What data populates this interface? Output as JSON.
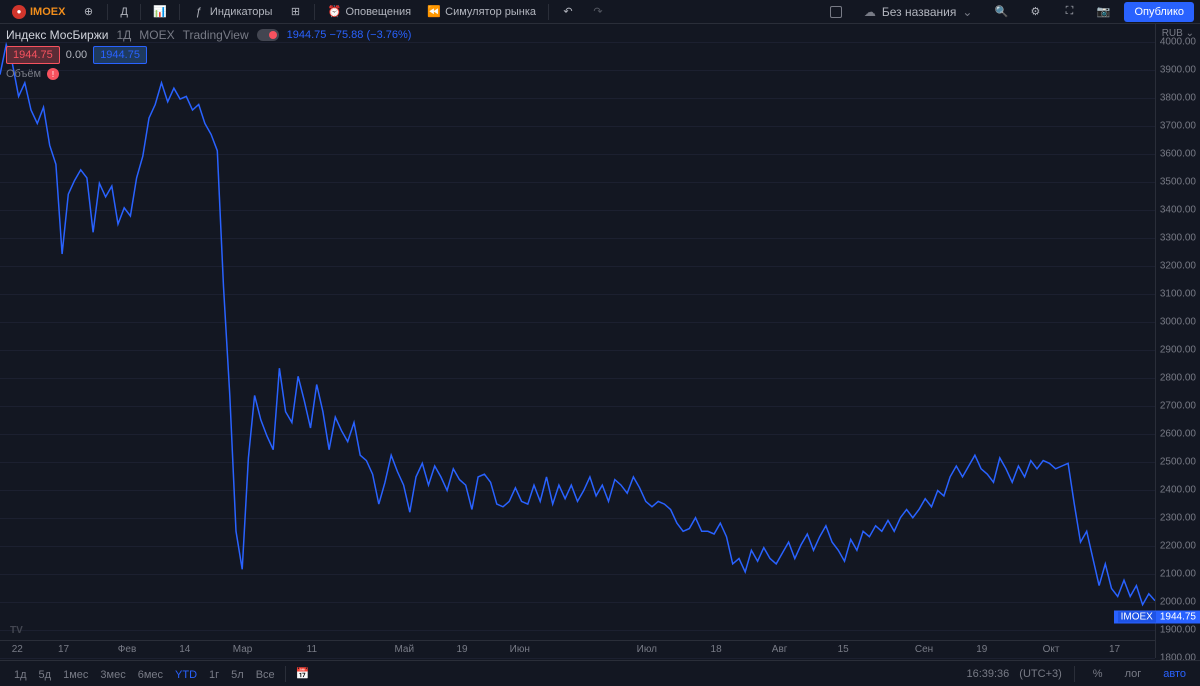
{
  "toolbar": {
    "symbol": "IMOEX",
    "interval": "Д",
    "indicators": "Индикаторы",
    "alerts": "Оповещения",
    "simulator": "Симулятор рынка",
    "untitled": "Без названия",
    "publish": "Опублико"
  },
  "header": {
    "title": "Индекс МосБиржи",
    "interval": "1Д",
    "exchange": "MOEX",
    "provider": "TradingView",
    "quote_price": "1944.75",
    "quote_change": "−75.88",
    "quote_pct": "(−3.76%)",
    "price_o": "1944.75",
    "price_mid": "0.00",
    "price_c": "1944.75",
    "volume_label": "Объём"
  },
  "yaxis": {
    "currency_label": "RUB",
    "ymin": 1800,
    "ymax": 4000,
    "step": 100,
    "ticks": [
      4000,
      3900,
      3800,
      3700,
      3600,
      3500,
      3400,
      3300,
      3200,
      3100,
      3000,
      2900,
      2800,
      2700,
      2600,
      2500,
      2400,
      2300,
      2200,
      2100,
      2000,
      1900,
      1800
    ],
    "price_tag_symbol": "IMOEX",
    "price_tag_value": "1944.75",
    "price_tag_y": 1944.75
  },
  "xaxis": {
    "labels": [
      {
        "x_pct": 1.5,
        "text": "22"
      },
      {
        "x_pct": 5.5,
        "text": "17"
      },
      {
        "x_pct": 11,
        "text": "Фев"
      },
      {
        "x_pct": 16,
        "text": "14"
      },
      {
        "x_pct": 21,
        "text": "Мар"
      },
      {
        "x_pct": 27,
        "text": "11"
      },
      {
        "x_pct": 35,
        "text": "Май"
      },
      {
        "x_pct": 40,
        "text": "19"
      },
      {
        "x_pct": 45,
        "text": "Июн"
      },
      {
        "x_pct": 56,
        "text": "Июл"
      },
      {
        "x_pct": 62,
        "text": "18"
      },
      {
        "x_pct": 67.5,
        "text": "Авг"
      },
      {
        "x_pct": 73,
        "text": "15"
      },
      {
        "x_pct": 80,
        "text": "Сен"
      },
      {
        "x_pct": 85,
        "text": "19"
      },
      {
        "x_pct": 91,
        "text": "Окт"
      },
      {
        "x_pct": 96.5,
        "text": "17"
      }
    ]
  },
  "chart": {
    "line_color": "#2962ff",
    "line_width": 1.5,
    "background": "#131722",
    "grid_color": "#1c2030",
    "points": [
      [
        0,
        3880
      ],
      [
        0.5,
        3990
      ],
      [
        1,
        3920
      ],
      [
        1.5,
        3800
      ],
      [
        2,
        3850
      ],
      [
        2.5,
        3750
      ],
      [
        3,
        3700
      ],
      [
        3.5,
        3760
      ],
      [
        4,
        3620
      ],
      [
        4.5,
        3550
      ],
      [
        5,
        3220
      ],
      [
        5.5,
        3440
      ],
      [
        6,
        3490
      ],
      [
        6.5,
        3530
      ],
      [
        7,
        3500
      ],
      [
        7.5,
        3300
      ],
      [
        8,
        3480
      ],
      [
        8.5,
        3430
      ],
      [
        9,
        3470
      ],
      [
        9.5,
        3330
      ],
      [
        10,
        3390
      ],
      [
        10.5,
        3360
      ],
      [
        11,
        3500
      ],
      [
        11.5,
        3580
      ],
      [
        12,
        3720
      ],
      [
        12.5,
        3770
      ],
      [
        13,
        3850
      ],
      [
        13.5,
        3780
      ],
      [
        14,
        3830
      ],
      [
        14.5,
        3790
      ],
      [
        15,
        3800
      ],
      [
        15.5,
        3750
      ],
      [
        16,
        3770
      ],
      [
        16.5,
        3700
      ],
      [
        17,
        3660
      ],
      [
        17.5,
        3600
      ],
      [
        18,
        3100
      ],
      [
        18.5,
        2700
      ],
      [
        19,
        2200
      ],
      [
        19.5,
        2060
      ],
      [
        20,
        2470
      ],
      [
        20.5,
        2700
      ],
      [
        21,
        2610
      ],
      [
        21.5,
        2550
      ],
      [
        22,
        2500
      ],
      [
        22.5,
        2800
      ],
      [
        23,
        2640
      ],
      [
        23.5,
        2600
      ],
      [
        24,
        2770
      ],
      [
        24.5,
        2680
      ],
      [
        25,
        2580
      ],
      [
        25.5,
        2740
      ],
      [
        26,
        2640
      ],
      [
        26.5,
        2500
      ],
      [
        27,
        2620
      ],
      [
        27.5,
        2570
      ],
      [
        28,
        2530
      ],
      [
        28.5,
        2600
      ],
      [
        29,
        2480
      ],
      [
        29.5,
        2460
      ],
      [
        30,
        2410
      ],
      [
        30.5,
        2300
      ],
      [
        31,
        2380
      ],
      [
        31.5,
        2480
      ],
      [
        32,
        2420
      ],
      [
        32.5,
        2370
      ],
      [
        33,
        2270
      ],
      [
        33.5,
        2400
      ],
      [
        34,
        2450
      ],
      [
        34.5,
        2370
      ],
      [
        35,
        2440
      ],
      [
        35.5,
        2400
      ],
      [
        36,
        2350
      ],
      [
        36.5,
        2430
      ],
      [
        37,
        2390
      ],
      [
        37.5,
        2370
      ],
      [
        38,
        2280
      ],
      [
        38.5,
        2400
      ],
      [
        39,
        2410
      ],
      [
        39.5,
        2380
      ],
      [
        40,
        2300
      ],
      [
        40.5,
        2290
      ],
      [
        41,
        2310
      ],
      [
        41.5,
        2360
      ],
      [
        42,
        2310
      ],
      [
        42.5,
        2300
      ],
      [
        43,
        2370
      ],
      [
        43.5,
        2310
      ],
      [
        44,
        2400
      ],
      [
        44.5,
        2300
      ],
      [
        45,
        2370
      ],
      [
        45.5,
        2320
      ],
      [
        46,
        2370
      ],
      [
        46.5,
        2310
      ],
      [
        47,
        2350
      ],
      [
        47.5,
        2400
      ],
      [
        48,
        2330
      ],
      [
        48.5,
        2370
      ],
      [
        49,
        2310
      ],
      [
        49.5,
        2390
      ],
      [
        50,
        2370
      ],
      [
        50.5,
        2340
      ],
      [
        51,
        2400
      ],
      [
        51.5,
        2360
      ],
      [
        52,
        2310
      ],
      [
        52.5,
        2290
      ],
      [
        53,
        2310
      ],
      [
        53.5,
        2300
      ],
      [
        54,
        2280
      ],
      [
        54.5,
        2230
      ],
      [
        55,
        2200
      ],
      [
        55.5,
        2210
      ],
      [
        56,
        2250
      ],
      [
        56.5,
        2200
      ],
      [
        57,
        2200
      ],
      [
        57.5,
        2190
      ],
      [
        58,
        2230
      ],
      [
        58.5,
        2180
      ],
      [
        59,
        2080
      ],
      [
        59.5,
        2100
      ],
      [
        60,
        2050
      ],
      [
        60.5,
        2130
      ],
      [
        61,
        2090
      ],
      [
        61.5,
        2140
      ],
      [
        62,
        2100
      ],
      [
        62.5,
        2080
      ],
      [
        63,
        2120
      ],
      [
        63.5,
        2160
      ],
      [
        64,
        2100
      ],
      [
        64.5,
        2150
      ],
      [
        65,
        2190
      ],
      [
        65.5,
        2130
      ],
      [
        66,
        2180
      ],
      [
        66.5,
        2220
      ],
      [
        67,
        2160
      ],
      [
        67.5,
        2130
      ],
      [
        68,
        2090
      ],
      [
        68.5,
        2170
      ],
      [
        69,
        2130
      ],
      [
        69.5,
        2200
      ],
      [
        70,
        2180
      ],
      [
        70.5,
        2220
      ],
      [
        71,
        2200
      ],
      [
        71.5,
        2240
      ],
      [
        72,
        2200
      ],
      [
        72.5,
        2250
      ],
      [
        73,
        2280
      ],
      [
        73.5,
        2250
      ],
      [
        74,
        2280
      ],
      [
        74.5,
        2320
      ],
      [
        75,
        2290
      ],
      [
        75.5,
        2350
      ],
      [
        76,
        2330
      ],
      [
        76.5,
        2400
      ],
      [
        77,
        2440
      ],
      [
        77.5,
        2400
      ],
      [
        78,
        2440
      ],
      [
        78.5,
        2480
      ],
      [
        79,
        2430
      ],
      [
        79.5,
        2410
      ],
      [
        80,
        2380
      ],
      [
        80.5,
        2470
      ],
      [
        81,
        2430
      ],
      [
        81.5,
        2380
      ],
      [
        82,
        2440
      ],
      [
        82.5,
        2400
      ],
      [
        83,
        2460
      ],
      [
        83.5,
        2430
      ],
      [
        84,
        2460
      ],
      [
        84.5,
        2450
      ],
      [
        85,
        2430
      ],
      [
        85.5,
        2440
      ],
      [
        86,
        2450
      ],
      [
        86.5,
        2300
      ],
      [
        87,
        2160
      ],
      [
        87.5,
        2200
      ],
      [
        88,
        2100
      ],
      [
        88.5,
        2000
      ],
      [
        89,
        2080
      ],
      [
        89.5,
        1990
      ],
      [
        90,
        1960
      ],
      [
        90.5,
        2020
      ],
      [
        91,
        1960
      ],
      [
        91.5,
        2000
      ],
      [
        92,
        1930
      ],
      [
        92.5,
        1970
      ],
      [
        93,
        1944.75
      ]
    ],
    "x_max": 93
  },
  "ranges": {
    "items": [
      "1д",
      "5д",
      "1мес",
      "3мес",
      "6мес",
      "YTD",
      "1г",
      "5л",
      "Все"
    ],
    "active": "YTD"
  },
  "footer": {
    "time": "16:39:36",
    "tz": "(UTC+3)",
    "pct": "%",
    "log": "лог",
    "auto": "авто"
  },
  "logo": "TV"
}
